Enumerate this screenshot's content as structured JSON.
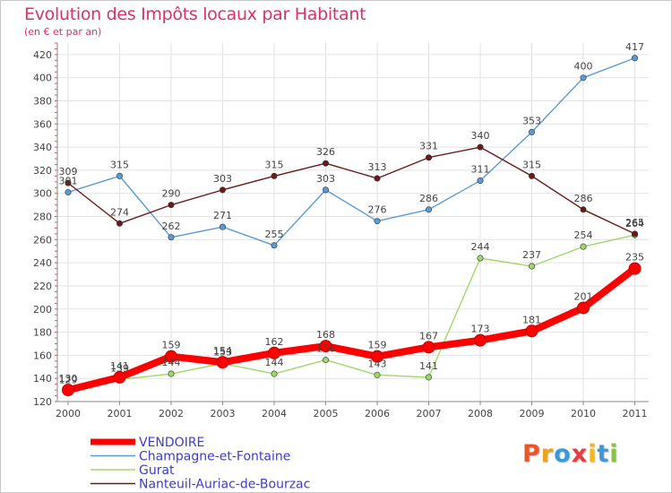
{
  "header": {
    "title": "Evolution des Impôts locaux par Habitant",
    "subtitle": "(en € et par an)"
  },
  "logo": {
    "text": "Proxiti",
    "letters": [
      {
        "ch": "P",
        "color": "#e8562a"
      },
      {
        "ch": "r",
        "color": "#f0a020"
      },
      {
        "ch": "o",
        "color": "#3a9ad9"
      },
      {
        "ch": "x",
        "color": "#e83c3c"
      },
      {
        "ch": "i",
        "color": "#f2b81e"
      },
      {
        "ch": "t",
        "color": "#3a9ad9"
      },
      {
        "ch": "i",
        "color": "#88c440"
      }
    ]
  },
  "chart_data": {
    "type": "line",
    "title": "Evolution des Impôts locaux par Habitant",
    "subtitle": "(en € et par an)",
    "x": [
      "2000",
      "2001",
      "2002",
      "2003",
      "2004",
      "2005",
      "2006",
      "2007",
      "2008",
      "2009",
      "2010",
      "2011"
    ],
    "ylim": [
      120,
      430
    ],
    "yticks": [
      120,
      140,
      160,
      180,
      200,
      220,
      240,
      260,
      280,
      300,
      320,
      340,
      360,
      380,
      400,
      420
    ],
    "grid": true,
    "legend_position": "bottom-left",
    "series": [
      {
        "name": "VENDOIRE",
        "color": "#ff0000",
        "emphasis": true,
        "values": [
          130,
          141,
          159,
          154,
          162,
          168,
          159,
          167,
          173,
          181,
          201,
          235
        ]
      },
      {
        "name": "Champagne-et-Fontaine",
        "color": "#5b9bd5",
        "emphasis": false,
        "values": [
          301,
          315,
          262,
          271,
          255,
          303,
          276,
          286,
          311,
          353,
          400,
          417
        ]
      },
      {
        "name": "Gurat",
        "color": "#9fd86a",
        "emphasis": false,
        "values": [
          129,
          139,
          144,
          153,
          144,
          156,
          143,
          141,
          244,
          237,
          254,
          264
        ]
      },
      {
        "name": "Nanteuil-Auriac-de-Bourzac",
        "color": "#6b1a1a",
        "emphasis": false,
        "values": [
          309,
          274,
          290,
          303,
          315,
          326,
          313,
          331,
          340,
          315,
          286,
          265
        ]
      }
    ],
    "data_labels": [
      [
        "130",
        "141",
        "159",
        "154",
        "162",
        "168",
        "159",
        "167",
        "173",
        "181",
        "201",
        "235"
      ],
      [
        "301",
        "315",
        "262",
        "271",
        "255",
        "303",
        "276",
        "286",
        "311",
        "353",
        "400",
        "417"
      ],
      [
        "129",
        "139",
        "144",
        "153",
        "144",
        "156",
        "143",
        "141",
        "244",
        "237",
        "254",
        "264"
      ],
      [
        "309",
        "274",
        "290",
        "303",
        "315",
        "326",
        "313",
        "331",
        "340",
        "315",
        "286",
        "265"
      ]
    ]
  }
}
